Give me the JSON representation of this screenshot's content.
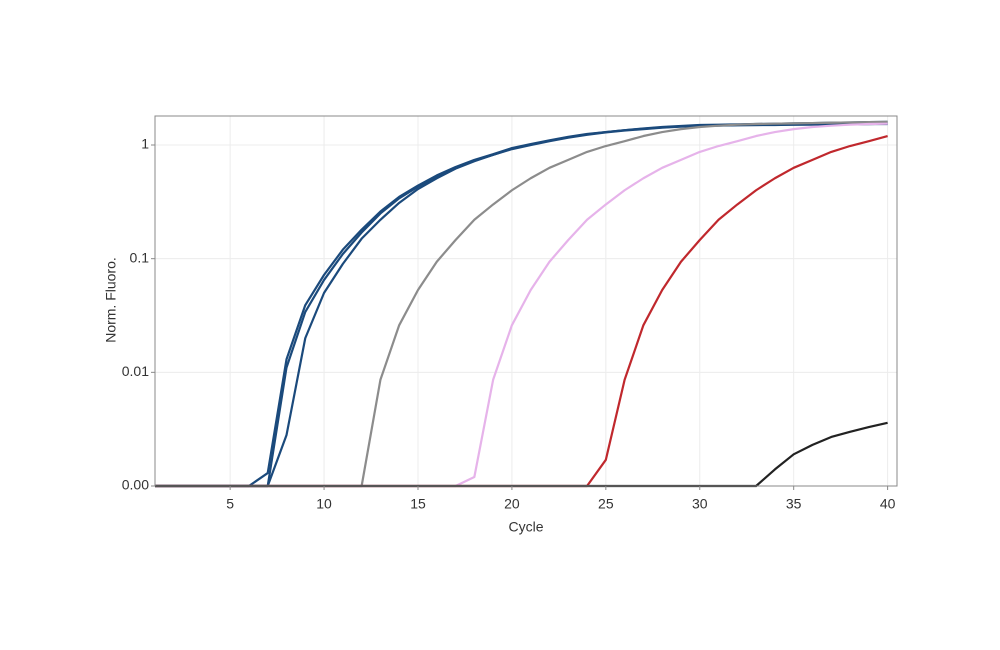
{
  "chart_data": {
    "type": "line",
    "x_label": "Cycle",
    "y_label": "Norm. Fluoro.",
    "log_y": true,
    "grid": true,
    "x": [
      1,
      2,
      3,
      4,
      5,
      6,
      7,
      8,
      9,
      10,
      11,
      12,
      13,
      14,
      15,
      16,
      17,
      18,
      19,
      20,
      21,
      22,
      23,
      24,
      25,
      26,
      27,
      28,
      29,
      30,
      31,
      32,
      33,
      34,
      35,
      36,
      37,
      38,
      39,
      40
    ],
    "xlim": [
      1,
      40.5
    ],
    "xticks": [
      5,
      10,
      15,
      20,
      25,
      30,
      35,
      40
    ],
    "ylim": [
      0.001,
      1.8
    ],
    "yticks": [
      {
        "value": 0.001,
        "label": "0.00"
      },
      {
        "value": 0.01,
        "label": "0.01"
      },
      {
        "value": 0.1,
        "label": "0.1"
      },
      1
    ],
    "series": [
      {
        "color": "#1b4a7c",
        "values": [
          0.001,
          0.001,
          0.001,
          0.001,
          0.001,
          0.001,
          0.0013,
          0.013,
          0.039,
          0.072,
          0.12,
          0.18,
          0.26,
          0.35,
          0.44,
          0.54,
          0.64,
          0.74,
          0.83,
          0.94,
          1.02,
          1.1,
          1.18,
          1.25,
          1.3,
          1.35,
          1.4,
          1.44,
          1.47,
          1.5,
          1.51,
          1.52,
          1.53,
          1.54,
          1.55,
          1.56,
          1.57,
          1.58,
          1.59,
          1.6
        ]
      },
      {
        "color": "#1b4a7c",
        "values": [
          0.001,
          0.001,
          0.001,
          0.001,
          0.001,
          0.001,
          0.001,
          0.011,
          0.034,
          0.065,
          0.11,
          0.17,
          0.25,
          0.34,
          0.43,
          0.53,
          0.63,
          0.73,
          0.82,
          0.93,
          1.01,
          1.09,
          1.17,
          1.24,
          1.3,
          1.35,
          1.39,
          1.43,
          1.46,
          1.48,
          1.49,
          1.5,
          1.5,
          1.51,
          1.51,
          1.52,
          1.52,
          1.53,
          1.53,
          1.54
        ]
      },
      {
        "color": "#1b4a7c",
        "values": [
          0.001,
          0.001,
          0.001,
          0.001,
          0.001,
          0.001,
          0.001,
          0.0028,
          0.02,
          0.05,
          0.09,
          0.15,
          0.22,
          0.31,
          0.41,
          0.51,
          0.62,
          0.72,
          0.82,
          0.92,
          1.0,
          1.08,
          1.16,
          1.23,
          1.29,
          1.34,
          1.38,
          1.42,
          1.45,
          1.47,
          1.48,
          1.49,
          1.5,
          1.5,
          1.51,
          1.51,
          1.52,
          1.52,
          1.53,
          1.53
        ]
      },
      {
        "color": "#8c8c8c",
        "values": [
          0.001,
          0.001,
          0.001,
          0.001,
          0.001,
          0.001,
          0.001,
          0.001,
          0.001,
          0.001,
          0.001,
          0.001,
          0.0086,
          0.026,
          0.053,
          0.094,
          0.146,
          0.22,
          0.3,
          0.4,
          0.51,
          0.63,
          0.74,
          0.87,
          0.98,
          1.08,
          1.2,
          1.3,
          1.38,
          1.44,
          1.48,
          1.51,
          1.53,
          1.54,
          1.55,
          1.56,
          1.57,
          1.58,
          1.59,
          1.6
        ]
      },
      {
        "color": "#e6b3ea",
        "values": [
          0.001,
          0.001,
          0.001,
          0.001,
          0.001,
          0.001,
          0.001,
          0.001,
          0.001,
          0.001,
          0.001,
          0.001,
          0.001,
          0.001,
          0.001,
          0.001,
          0.001,
          0.0012,
          0.0086,
          0.026,
          0.053,
          0.094,
          0.146,
          0.22,
          0.3,
          0.4,
          0.51,
          0.63,
          0.74,
          0.87,
          0.98,
          1.08,
          1.2,
          1.3,
          1.38,
          1.44,
          1.48,
          1.51,
          1.53,
          1.54
        ]
      },
      {
        "color": "#c0282d",
        "values": [
          0.001,
          0.001,
          0.001,
          0.001,
          0.001,
          0.001,
          0.001,
          0.001,
          0.001,
          0.001,
          0.001,
          0.001,
          0.001,
          0.001,
          0.001,
          0.001,
          0.001,
          0.001,
          0.001,
          0.001,
          0.001,
          0.001,
          0.001,
          0.001,
          0.0017,
          0.0086,
          0.026,
          0.053,
          0.094,
          0.146,
          0.22,
          0.3,
          0.4,
          0.51,
          0.63,
          0.74,
          0.87,
          0.98,
          1.08,
          1.2
        ]
      },
      {
        "color": "#222222",
        "values": [
          0.001,
          0.001,
          0.001,
          0.001,
          0.001,
          0.001,
          0.001,
          0.001,
          0.001,
          0.001,
          0.001,
          0.001,
          0.001,
          0.001,
          0.001,
          0.001,
          0.001,
          0.001,
          0.001,
          0.001,
          0.001,
          0.001,
          0.001,
          0.001,
          0.001,
          0.001,
          0.001,
          0.001,
          0.001,
          0.001,
          0.001,
          0.001,
          0.001,
          0.0014,
          0.0019,
          0.0023,
          0.0027,
          0.003,
          0.0033,
          0.0036
        ]
      }
    ]
  }
}
